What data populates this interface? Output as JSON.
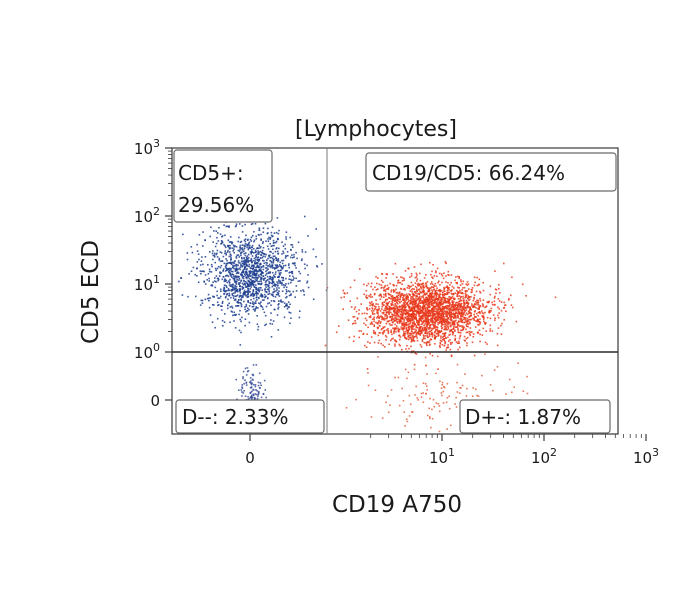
{
  "chart_data": {
    "type": "scatter",
    "title": "[Lymphocytes]",
    "xlabel": "CD19 A750",
    "ylabel": "CD5 ECD",
    "x_scale": "logicle (log above 0)",
    "y_scale": "logicle (log above 0)",
    "xlim": [
      -0.5,
      1000
    ],
    "ylim": [
      -0.5,
      1000
    ],
    "x_ticks": [
      {
        "value": 0,
        "base": "0",
        "exp": ""
      },
      {
        "value": 10,
        "base": "10",
        "exp": "1"
      },
      {
        "value": 100,
        "base": "10",
        "exp": "2"
      },
      {
        "value": 1000,
        "base": "10",
        "exp": "3"
      }
    ],
    "y_ticks": [
      {
        "value": 0,
        "base": "0",
        "exp": ""
      },
      {
        "value": 1,
        "base": "10",
        "exp": "0"
      },
      {
        "value": 10,
        "base": "10",
        "exp": "1"
      },
      {
        "value": 100,
        "base": "10",
        "exp": "2"
      },
      {
        "value": 1000,
        "base": "10",
        "exp": "3"
      }
    ],
    "gates": {
      "x_threshold": 2,
      "y_threshold": 1
    },
    "quadrants": [
      {
        "id": "upper-left",
        "line1": "CD5+:",
        "line2": "29.56%",
        "percent": 29.56
      },
      {
        "id": "upper-right",
        "line1": "CD19/CD5: 66.24%",
        "line2": "",
        "percent": 66.24
      },
      {
        "id": "lower-left",
        "line1": "D--: 2.33%",
        "line2": "",
        "percent": 2.33
      },
      {
        "id": "lower-right",
        "line1": "D+-: 1.87%",
        "line2": "",
        "percent": 1.87
      }
    ],
    "populations": [
      {
        "quadrant": "upper-left",
        "center": [
          0,
          15
        ],
        "color": "#1f3f8f",
        "relative_density": 0.3
      },
      {
        "quadrant": "upper-right",
        "center": [
          7,
          4
        ],
        "color": "#e83a1c",
        "relative_density": 0.66
      },
      {
        "quadrant": "lower-left",
        "center": [
          0,
          0.15
        ],
        "color": "#3a4f9a",
        "relative_density": 0.02
      },
      {
        "quadrant": "lower-right",
        "center": [
          10,
          0.1
        ],
        "color": "#e0643f",
        "relative_density": 0.02
      }
    ],
    "grid": false,
    "legend": "none"
  }
}
